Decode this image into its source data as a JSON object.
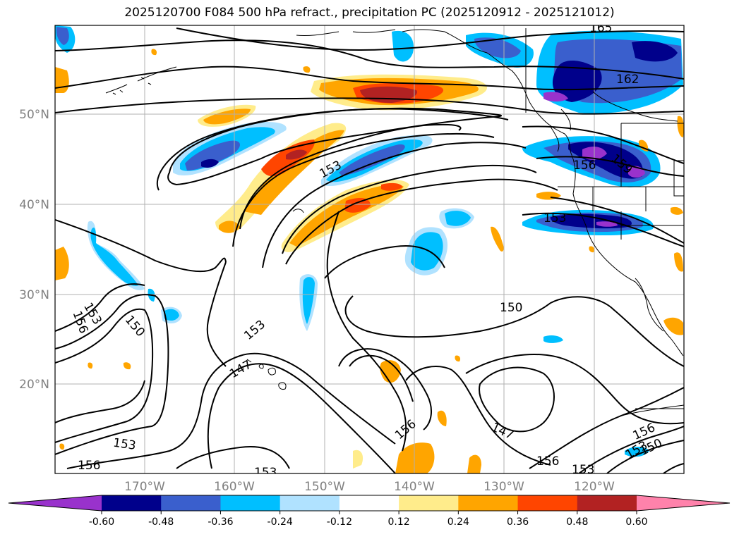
{
  "title": "2025120700 F084 500 hPa refract., precipitation PC (2025120912 - 2025121012)",
  "latitudes": [
    {
      "label": "50°N"
    },
    {
      "label": "40°N"
    },
    {
      "label": "30°N"
    },
    {
      "label": "20°N"
    }
  ],
  "longitudes": [
    {
      "label": "170°W"
    },
    {
      "label": "160°W"
    },
    {
      "label": "150°W"
    },
    {
      "label": "140°W"
    },
    {
      "label": "130°W"
    },
    {
      "label": "120°W"
    }
  ],
  "contour_labels": [
    "165",
    "162",
    "153",
    "156",
    "159",
    "153",
    "150",
    "147",
    "153",
    "156",
    "150",
    "153",
    "156",
    "147",
    "156",
    "153",
    "156",
    "153",
    "150",
    "153"
  ],
  "colorbar": {
    "tick_labels": [
      "-0.60",
      "-0.48",
      "-0.36",
      "-0.24",
      "-0.12",
      "0.12",
      "0.24",
      "0.36",
      "0.48",
      "0.60"
    ],
    "colors": [
      "#9932cc",
      "#00008b",
      "#3a5fcd",
      "#00bfff",
      "#b0e2ff",
      "#ffffff",
      "#ffec8b",
      "#ffa500",
      "#ff4500",
      "#b22222",
      "#ff82ab"
    ]
  }
}
